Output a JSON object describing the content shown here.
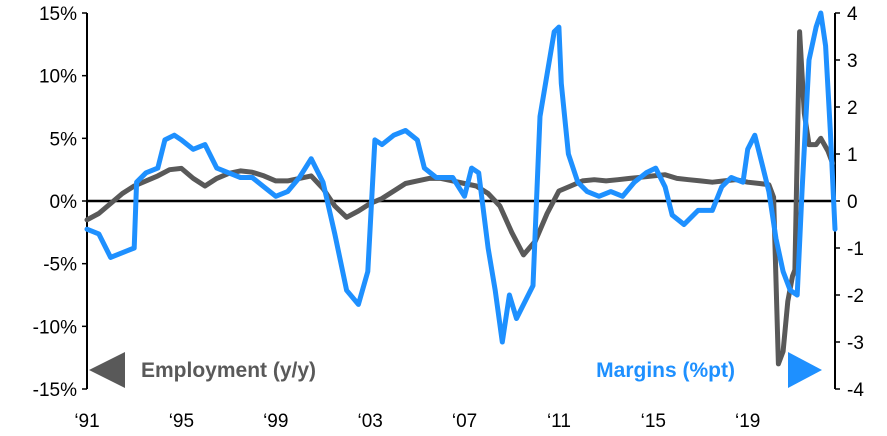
{
  "chart_data": {
    "type": "line",
    "title": "",
    "xlabel": "",
    "x_tick_labels": [
      "‘91",
      "‘95",
      "‘99",
      "‘03",
      "‘07",
      "‘11",
      "‘15",
      "‘19"
    ],
    "x_tick_years": [
      1991,
      1995,
      1999,
      2003,
      2007,
      2011,
      2015,
      2019
    ],
    "xlim": [
      1991,
      2022.7
    ],
    "y_left": {
      "ylim": [
        -15,
        15
      ],
      "tick_values": [
        15,
        10,
        5,
        0,
        -5,
        -10,
        -15
      ],
      "tick_labels": [
        "15%",
        "10%",
        "5%",
        "0%",
        "-5%",
        "-10%",
        "-15%"
      ]
    },
    "y_right": {
      "ylim": [
        -4,
        4
      ],
      "tick_values": [
        4,
        3,
        2,
        1,
        0,
        -1,
        -2,
        -3,
        -4
      ],
      "tick_labels": [
        "4",
        "3",
        "2",
        "1",
        "0",
        "-1",
        "-2",
        "-3",
        "-4"
      ]
    },
    "legend": {
      "left": {
        "label": "Employment (y/y)",
        "arrow": "left",
        "color": "#595959"
      },
      "right": {
        "label": "Margins (%pt)",
        "arrow": "right",
        "color": "#1e90ff"
      }
    },
    "series": [
      {
        "name": "Employment (y/y)",
        "axis": "left",
        "color": "#595959",
        "points": [
          [
            1991.0,
            -1.5
          ],
          [
            1991.5,
            -1.0
          ],
          [
            1992.0,
            -0.2
          ],
          [
            1992.5,
            0.6
          ],
          [
            1993.0,
            1.2
          ],
          [
            1993.5,
            1.6
          ],
          [
            1994.0,
            2.0
          ],
          [
            1994.5,
            2.5
          ],
          [
            1995.0,
            2.6
          ],
          [
            1995.5,
            1.8
          ],
          [
            1996.0,
            1.2
          ],
          [
            1996.5,
            1.8
          ],
          [
            1997.0,
            2.2
          ],
          [
            1997.5,
            2.4
          ],
          [
            1998.0,
            2.3
          ],
          [
            1998.5,
            2.0
          ],
          [
            1999.0,
            1.6
          ],
          [
            1999.5,
            1.6
          ],
          [
            2000.0,
            1.8
          ],
          [
            2000.5,
            2.0
          ],
          [
            2001.0,
            1.0
          ],
          [
            2001.5,
            -0.4
          ],
          [
            2002.0,
            -1.3
          ],
          [
            2002.5,
            -0.8
          ],
          [
            2003.0,
            -0.2
          ],
          [
            2003.5,
            0.2
          ],
          [
            2004.0,
            0.8
          ],
          [
            2004.5,
            1.4
          ],
          [
            2005.0,
            1.6
          ],
          [
            2005.5,
            1.8
          ],
          [
            2006.0,
            1.8
          ],
          [
            2006.5,
            1.6
          ],
          [
            2007.0,
            1.4
          ],
          [
            2007.5,
            1.2
          ],
          [
            2008.0,
            0.6
          ],
          [
            2008.5,
            -0.4
          ],
          [
            2009.0,
            -2.5
          ],
          [
            2009.5,
            -4.3
          ],
          [
            2010.0,
            -3.2
          ],
          [
            2010.5,
            -1.0
          ],
          [
            2011.0,
            0.8
          ],
          [
            2011.5,
            1.2
          ],
          [
            2012.0,
            1.6
          ],
          [
            2012.5,
            1.7
          ],
          [
            2013.0,
            1.6
          ],
          [
            2013.5,
            1.7
          ],
          [
            2014.0,
            1.8
          ],
          [
            2014.5,
            1.9
          ],
          [
            2015.0,
            2.0
          ],
          [
            2015.5,
            2.1
          ],
          [
            2016.0,
            1.8
          ],
          [
            2016.5,
            1.7
          ],
          [
            2017.0,
            1.6
          ],
          [
            2017.5,
            1.5
          ],
          [
            2018.0,
            1.6
          ],
          [
            2018.5,
            1.7
          ],
          [
            2019.0,
            1.5
          ],
          [
            2019.5,
            1.4
          ],
          [
            2019.9,
            1.3
          ],
          [
            2020.1,
            0.3
          ],
          [
            2020.3,
            -13.0
          ],
          [
            2020.5,
            -12.0
          ],
          [
            2020.7,
            -8.0
          ],
          [
            2020.9,
            -6.0
          ],
          [
            2021.0,
            -5.5
          ],
          [
            2021.2,
            13.5
          ],
          [
            2021.4,
            7.0
          ],
          [
            2021.6,
            4.5
          ],
          [
            2021.9,
            4.5
          ],
          [
            2022.1,
            5.0
          ],
          [
            2022.4,
            4.0
          ],
          [
            2022.6,
            3.0
          ]
        ]
      },
      {
        "name": "Margins (%pt)",
        "axis": "right",
        "color": "#1e90ff",
        "points": [
          [
            1991.0,
            -0.6
          ],
          [
            1991.5,
            -0.7
          ],
          [
            1992.0,
            -1.2
          ],
          [
            1992.5,
            -1.1
          ],
          [
            1993.0,
            -1.0
          ],
          [
            1993.1,
            0.4
          ],
          [
            1993.5,
            0.6
          ],
          [
            1994.0,
            0.7
          ],
          [
            1994.3,
            1.3
          ],
          [
            1994.7,
            1.4
          ],
          [
            1995.0,
            1.3
          ],
          [
            1995.5,
            1.1
          ],
          [
            1996.0,
            1.2
          ],
          [
            1996.5,
            0.7
          ],
          [
            1997.0,
            0.6
          ],
          [
            1997.5,
            0.5
          ],
          [
            1998.0,
            0.5
          ],
          [
            1998.5,
            0.3
          ],
          [
            1999.0,
            0.1
          ],
          [
            1999.5,
            0.2
          ],
          [
            2000.0,
            0.5
          ],
          [
            2000.5,
            0.9
          ],
          [
            2001.0,
            0.4
          ],
          [
            2001.5,
            -0.7
          ],
          [
            2002.0,
            -1.9
          ],
          [
            2002.5,
            -2.2
          ],
          [
            2002.9,
            -1.5
          ],
          [
            2003.2,
            1.3
          ],
          [
            2003.5,
            1.2
          ],
          [
            2004.0,
            1.4
          ],
          [
            2004.5,
            1.5
          ],
          [
            2005.0,
            1.3
          ],
          [
            2005.3,
            0.7
          ],
          [
            2005.8,
            0.5
          ],
          [
            2006.5,
            0.5
          ],
          [
            2007.0,
            0.1
          ],
          [
            2007.3,
            0.7
          ],
          [
            2007.6,
            0.6
          ],
          [
            2008.0,
            -1.0
          ],
          [
            2008.3,
            -1.9
          ],
          [
            2008.6,
            -3.0
          ],
          [
            2008.9,
            -2.0
          ],
          [
            2009.2,
            -2.5
          ],
          [
            2009.6,
            -2.1
          ],
          [
            2009.9,
            -1.8
          ],
          [
            2010.2,
            1.8
          ],
          [
            2010.5,
            2.7
          ],
          [
            2010.8,
            3.6
          ],
          [
            2011.0,
            3.7
          ],
          [
            2011.1,
            2.5
          ],
          [
            2011.4,
            1.0
          ],
          [
            2011.8,
            0.4
          ],
          [
            2012.2,
            0.2
          ],
          [
            2012.7,
            0.1
          ],
          [
            2013.2,
            0.2
          ],
          [
            2013.7,
            0.1
          ],
          [
            2014.2,
            0.4
          ],
          [
            2014.7,
            0.6
          ],
          [
            2015.1,
            0.7
          ],
          [
            2015.5,
            0.3
          ],
          [
            2015.8,
            -0.3
          ],
          [
            2016.3,
            -0.5
          ],
          [
            2016.9,
            -0.2
          ],
          [
            2017.5,
            -0.2
          ],
          [
            2017.9,
            0.3
          ],
          [
            2018.3,
            0.5
          ],
          [
            2018.8,
            0.4
          ],
          [
            2019.0,
            1.1
          ],
          [
            2019.3,
            1.4
          ],
          [
            2019.6,
            0.8
          ],
          [
            2019.9,
            0.2
          ],
          [
            2020.2,
            -0.8
          ],
          [
            2020.5,
            -1.5
          ],
          [
            2020.8,
            -1.9
          ],
          [
            2021.1,
            -2.0
          ],
          [
            2021.3,
            0.2
          ],
          [
            2021.6,
            3.0
          ],
          [
            2021.9,
            3.7
          ],
          [
            2022.1,
            4.0
          ],
          [
            2022.3,
            3.3
          ],
          [
            2022.5,
            1.5
          ],
          [
            2022.7,
            -0.6
          ]
        ]
      }
    ]
  }
}
